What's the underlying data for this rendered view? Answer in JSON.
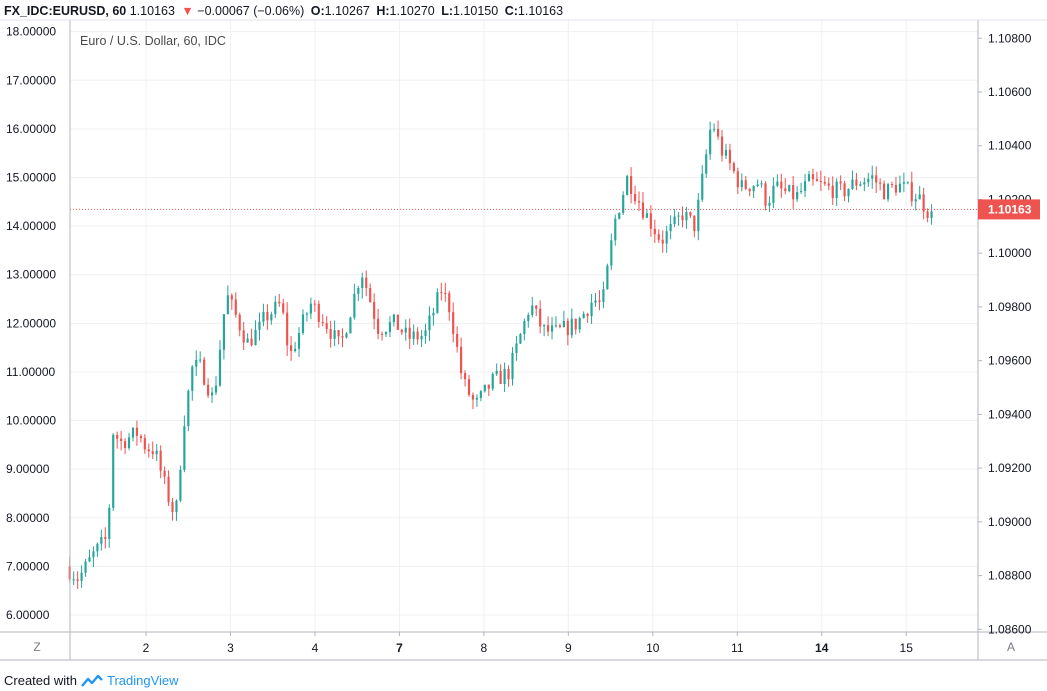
{
  "header": {
    "symbol": "FX_IDC:EURUSD, 60",
    "last": "1.10163",
    "change": "−0.00067 (−0.06%)",
    "o_label": "O:",
    "o": "1.10267",
    "h_label": "H:",
    "h": "1.10270",
    "l_label": "L:",
    "l": "1.10150",
    "c_label": "C:",
    "c": "1.10163"
  },
  "legend": "Euro / U.S. Dollar, 60, IDC",
  "corner_left": "Z",
  "corner_right": "A",
  "price_tag": "1.10163",
  "footer": {
    "created": "Created with",
    "brand": "TradingView"
  },
  "colors": {
    "up": "#26a69a",
    "down": "#ef5350",
    "tag": "#ef5350",
    "grid": "#eef0f3"
  },
  "chart_data": {
    "type": "candlestick",
    "left_axis": {
      "ticks": [
        "6.00000",
        "7.00000",
        "8.00000",
        "9.00000",
        "10.00000",
        "11.00000",
        "12.00000",
        "13.00000",
        "14.00000",
        "15.00000",
        "16.00000",
        "17.00000",
        "18.00000"
      ],
      "range": [
        5.65,
        18.24
      ]
    },
    "right_axis": {
      "ticks": [
        "1.08600",
        "1.08800",
        "1.09000",
        "1.09200",
        "1.09400",
        "1.09600",
        "1.09800",
        "1.10000",
        "1.10200",
        "1.10400",
        "1.10600",
        "1.10800"
      ],
      "range": [
        1.0859,
        1.10868
      ]
    },
    "x_ticks": [
      {
        "label": "2",
        "bold": false,
        "x": 1.0
      },
      {
        "label": "3",
        "bold": false,
        "x": 2.0
      },
      {
        "label": "4",
        "bold": false,
        "x": 3.0
      },
      {
        "label": "7",
        "bold": true,
        "x": 4.0
      },
      {
        "label": "8",
        "bold": false,
        "x": 5.0
      },
      {
        "label": "9",
        "bold": false,
        "x": 6.0
      },
      {
        "label": "10",
        "bold": false,
        "x": 7.0
      },
      {
        "label": "11",
        "bold": false,
        "x": 8.0
      },
      {
        "label": "14",
        "bold": true,
        "x": 9.0
      },
      {
        "label": "15",
        "bold": false,
        "x": 10.0
      }
    ],
    "x_range": [
      0.1,
      10.85
    ],
    "last_price": 1.10163,
    "path_days": [
      0.05,
      0.2,
      0.4,
      0.55,
      0.6,
      0.7,
      0.9,
      1.0,
      1.1,
      1.25,
      1.35,
      1.45,
      1.55,
      1.65,
      1.8,
      1.95,
      2.2,
      2.35,
      2.4,
      2.6,
      2.7,
      2.9,
      2.95,
      3.1,
      3.3,
      3.55,
      3.75,
      3.95,
      4.1,
      4.3,
      4.5,
      4.6,
      4.75,
      4.9,
      5.1,
      5.3,
      5.55,
      5.7,
      5.85,
      6.1,
      6.3,
      6.4,
      6.55,
      6.7,
      6.9,
      7.1,
      7.25,
      7.35,
      7.5,
      7.7,
      7.8,
      7.9,
      8.05,
      8.25,
      8.35,
      8.45,
      8.55,
      8.7,
      8.85,
      9.05,
      9.25,
      9.4,
      9.6,
      9.75,
      9.9,
      10.05,
      10.15,
      10.3
    ],
    "path_values": [
      7.0,
      6.75,
      7.3,
      7.6,
      9.8,
      9.55,
      9.75,
      9.45,
      9.4,
      8.5,
      8.0,
      10.0,
      11.1,
      11.1,
      10.4,
      12.6,
      11.6,
      11.9,
      12.1,
      12.4,
      11.3,
      12.2,
      12.4,
      12.1,
      11.5,
      13.1,
      11.9,
      12.0,
      11.7,
      11.75,
      12.7,
      12.3,
      10.8,
      10.3,
      10.8,
      11.0,
      12.4,
      11.85,
      11.8,
      12.0,
      12.5,
      12.35,
      14.1,
      15.0,
      14.3,
      13.7,
      14.0,
      14.25,
      14.0,
      16.2,
      15.6,
      15.3,
      14.8,
      14.9,
      14.5,
      14.8,
      14.7,
      14.6,
      14.9,
      14.8,
      14.7,
      14.9,
      15.0,
      14.7,
      14.85,
      14.7,
      14.6,
      14.2
    ],
    "candle_count": 219
  }
}
